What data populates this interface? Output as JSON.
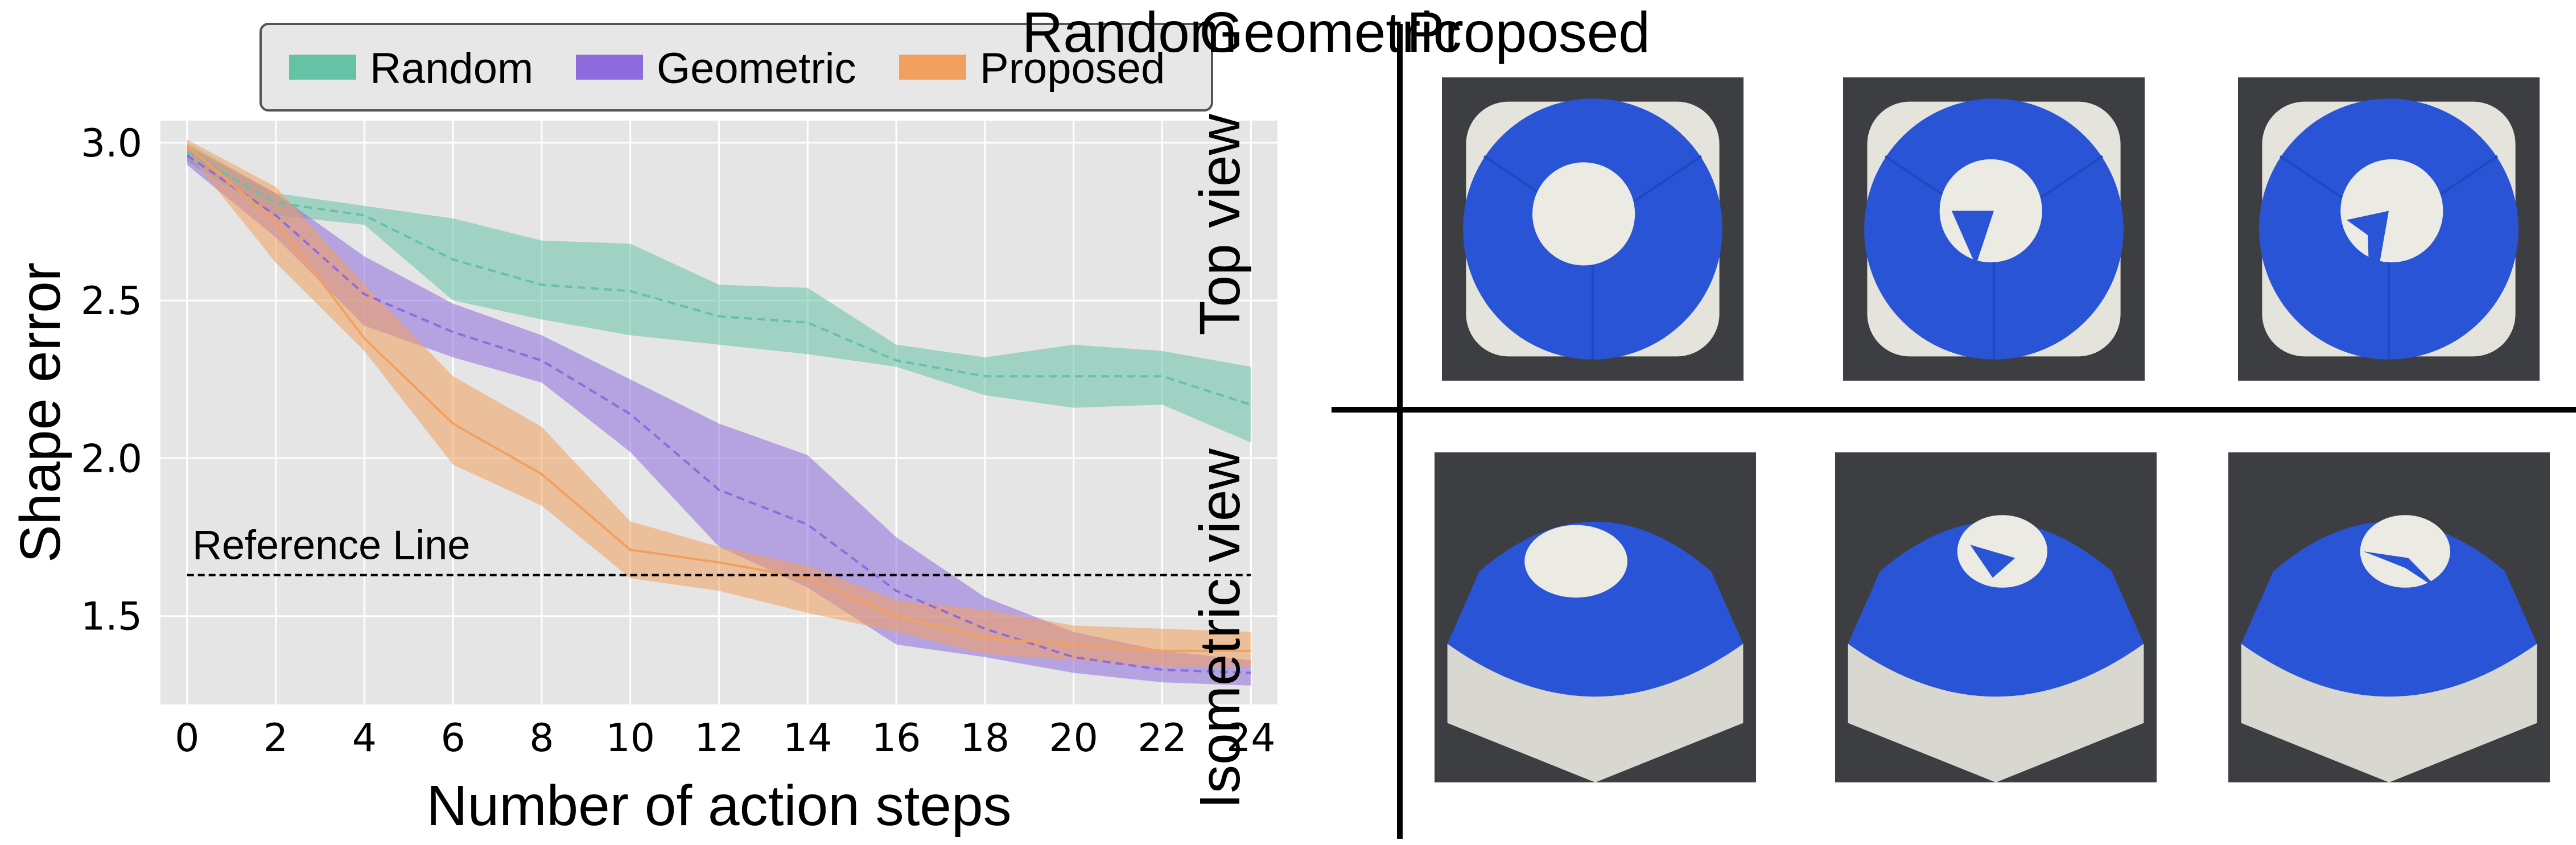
{
  "chart_data": {
    "type": "line",
    "xlabel": "Number of action steps",
    "ylabel": "Shape error",
    "xlim": [
      -0.6,
      24.6
    ],
    "ylim": [
      1.22,
      3.07
    ],
    "xticks": [
      0,
      2,
      4,
      6,
      8,
      10,
      12,
      14,
      16,
      18,
      20,
      22,
      24
    ],
    "yticks": [
      1.5,
      2.0,
      2.5,
      3.0
    ],
    "grid": true,
    "legend_position": "top",
    "x": [
      0,
      2,
      4,
      6,
      8,
      10,
      12,
      14,
      16,
      18,
      20,
      22,
      24
    ],
    "series": [
      {
        "name": "Random",
        "color": "#66c2a5",
        "values": [
          2.97,
          2.81,
          2.77,
          2.63,
          2.55,
          2.53,
          2.45,
          2.43,
          2.31,
          2.26,
          2.26,
          2.26,
          2.17
        ],
        "upper": [
          3.0,
          2.84,
          2.8,
          2.76,
          2.69,
          2.68,
          2.55,
          2.54,
          2.36,
          2.32,
          2.36,
          2.34,
          2.29
        ],
        "lower": [
          2.94,
          2.77,
          2.74,
          2.5,
          2.44,
          2.39,
          2.36,
          2.33,
          2.29,
          2.2,
          2.16,
          2.17,
          2.05
        ]
      },
      {
        "name": "Geometric",
        "color": "#8e6bdd",
        "values": [
          2.96,
          2.77,
          2.52,
          2.4,
          2.31,
          2.14,
          1.9,
          1.79,
          1.58,
          1.46,
          1.37,
          1.33,
          1.32
        ],
        "upper": [
          2.99,
          2.84,
          2.64,
          2.49,
          2.39,
          2.25,
          2.11,
          2.01,
          1.75,
          1.56,
          1.45,
          1.39,
          1.36
        ],
        "lower": [
          2.93,
          2.7,
          2.42,
          2.32,
          2.24,
          2.02,
          1.72,
          1.59,
          1.41,
          1.37,
          1.32,
          1.29,
          1.28
        ]
      },
      {
        "name": "Proposed",
        "color": "#f2a05f",
        "values": [
          2.99,
          2.75,
          2.38,
          2.11,
          1.95,
          1.71,
          1.67,
          1.62,
          1.5,
          1.43,
          1.41,
          1.39,
          1.39
        ],
        "upper": [
          3.01,
          2.86,
          2.55,
          2.26,
          2.1,
          1.8,
          1.72,
          1.66,
          1.55,
          1.52,
          1.47,
          1.46,
          1.45
        ],
        "lower": [
          2.97,
          2.62,
          2.34,
          1.98,
          1.85,
          1.62,
          1.58,
          1.51,
          1.45,
          1.38,
          1.36,
          1.34,
          1.34
        ]
      }
    ],
    "annotations": [
      {
        "text": "Reference Line",
        "type": "hline",
        "y": 1.63,
        "color": "#000000",
        "x_from": 0,
        "x_to": 24
      }
    ]
  },
  "panel": {
    "columns": [
      "Random",
      "Geometric",
      "Proposed"
    ],
    "rows": [
      "Top view",
      "Isometric view"
    ],
    "colors": {
      "blue": "#2a54d6",
      "white": "#ecebe3",
      "background": "#3a3b3e"
    }
  }
}
